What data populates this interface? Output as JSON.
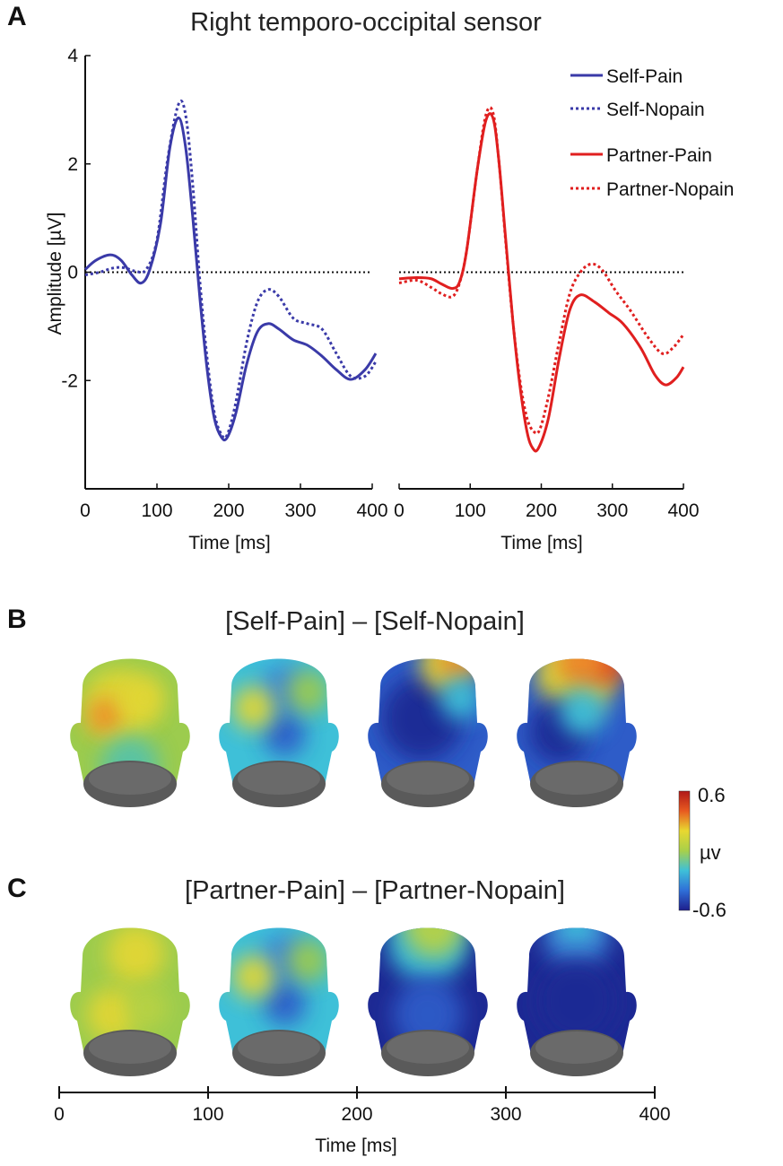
{
  "chart_data": [
    {
      "panel": "A",
      "type": "line",
      "title": "Right temporo-occipital sensor",
      "xlabel": "Time [ms]",
      "ylabel": "Amplitude [µV]",
      "xlim": [
        0,
        400
      ],
      "ylim": [
        -4,
        4
      ],
      "xticks": [
        0,
        100,
        200,
        300,
        400
      ],
      "yticks": [
        4,
        2,
        0,
        -2
      ],
      "subplots": [
        {
          "name": "self",
          "series": [
            {
              "name": "Self-Pain",
              "color": "#3a3aa8",
              "style": "solid",
              "x": [
                0,
                15,
                35,
                50,
                65,
                78,
                90,
                105,
                118,
                130,
                140,
                150,
                160,
                170,
                180,
                190,
                198,
                210,
                225,
                240,
                255,
                270,
                290,
                310,
                330,
                350,
                370,
                390,
                405
              ],
              "y": [
                0.05,
                0.22,
                0.32,
                0.22,
                -0.05,
                -0.2,
                0.05,
                0.9,
                2.3,
                2.85,
                2.3,
                1.0,
                -0.5,
                -1.8,
                -2.7,
                -3.05,
                -3.05,
                -2.6,
                -1.7,
                -1.1,
                -0.95,
                -1.05,
                -1.25,
                -1.35,
                -1.55,
                -1.8,
                -1.98,
                -1.8,
                -1.5
              ]
            },
            {
              "name": "Self-Nopain",
              "color": "#3a3aa8",
              "style": "dotted",
              "x": [
                0,
                20,
                40,
                55,
                70,
                85,
                100,
                115,
                130,
                140,
                150,
                160,
                170,
                180,
                190,
                198,
                210,
                225,
                240,
                255,
                270,
                290,
                310,
                330,
                350,
                370,
                390,
                405
              ],
              "y": [
                -0.05,
                0.0,
                0.08,
                0.08,
                0.02,
                0.05,
                0.6,
                2.1,
                3.1,
                2.9,
                1.6,
                -0.2,
                -1.6,
                -2.6,
                -3.0,
                -3.0,
                -2.4,
                -1.3,
                -0.55,
                -0.32,
                -0.45,
                -0.85,
                -0.95,
                -1.05,
                -1.5,
                -1.92,
                -1.92,
                -1.65
              ]
            }
          ]
        },
        {
          "name": "partner",
          "series": [
            {
              "name": "Partner-Pain",
              "color": "#e01f1f",
              "style": "solid",
              "x": [
                0,
                25,
                45,
                60,
                75,
                85,
                95,
                110,
                122,
                132,
                140,
                150,
                160,
                170,
                180,
                188,
                196,
                210,
                225,
                240,
                255,
                275,
                295,
                315,
                340,
                360,
                375,
                390,
                400
              ],
              "y": [
                -0.12,
                -0.1,
                -0.12,
                -0.22,
                -0.3,
                -0.18,
                0.4,
                1.9,
                2.8,
                2.85,
                2.1,
                0.6,
                -0.9,
                -2.1,
                -2.95,
                -3.25,
                -3.25,
                -2.7,
                -1.6,
                -0.7,
                -0.42,
                -0.55,
                -0.75,
                -0.95,
                -1.4,
                -1.9,
                -2.08,
                -1.95,
                -1.75
              ]
            },
            {
              "name": "Partner-Nopain",
              "color": "#e01f1f",
              "style": "dotted",
              "x": [
                0,
                25,
                45,
                60,
                75,
                85,
                95,
                110,
                122,
                132,
                140,
                150,
                160,
                170,
                180,
                190,
                198,
                210,
                225,
                240,
                255,
                270,
                285,
                305,
                325,
                350,
                370,
                385,
                400
              ],
              "y": [
                -0.2,
                -0.15,
                -0.28,
                -0.4,
                -0.45,
                -0.2,
                0.4,
                1.9,
                2.9,
                2.95,
                2.1,
                0.55,
                -0.9,
                -2.0,
                -2.7,
                -2.95,
                -2.9,
                -2.3,
                -1.3,
                -0.4,
                0.0,
                0.15,
                0.05,
                -0.35,
                -0.7,
                -1.2,
                -1.5,
                -1.4,
                -1.15
              ]
            }
          ]
        }
      ],
      "reference_line": {
        "y": 0,
        "style": "dotted",
        "color": "#111111"
      }
    },
    {
      "panel": "B",
      "type": "heatmap",
      "title": "[Self-Pain] – [Self-Nopain]",
      "topomaps": [
        {
          "time_ms": 50,
          "pattern": "positive-left"
        },
        {
          "time_ms": 150,
          "pattern": "mixed"
        },
        {
          "time_ms": 250,
          "pattern": "negative-with-top-right-positive"
        },
        {
          "time_ms": 350,
          "pattern": "negative-with-top-positive"
        }
      ]
    },
    {
      "panel": "C",
      "type": "heatmap",
      "title": "[Partner-Pain] – [Partner-Nopain]",
      "topomaps": [
        {
          "time_ms": 50,
          "pattern": "positive"
        },
        {
          "time_ms": 150,
          "pattern": "mixed"
        },
        {
          "time_ms": 250,
          "pattern": "negative"
        },
        {
          "time_ms": 350,
          "pattern": "strong-negative"
        }
      ]
    }
  ],
  "colorbar": {
    "max_label": "0.6",
    "unit_label": "µv",
    "min_label": "-0.6",
    "colors": [
      "#1e1e8c",
      "#2f6fd8",
      "#3ec0d8",
      "#a8d04a",
      "#e8d830",
      "#e85a20",
      "#b01818"
    ]
  },
  "bottom_axis": {
    "xlabel": "Time [ms]",
    "ticks": [
      0,
      100,
      200,
      300,
      400
    ]
  },
  "legend": [
    "Self-Pain",
    "Self-Nopain",
    "Partner-Pain",
    "Partner-Nopain"
  ]
}
